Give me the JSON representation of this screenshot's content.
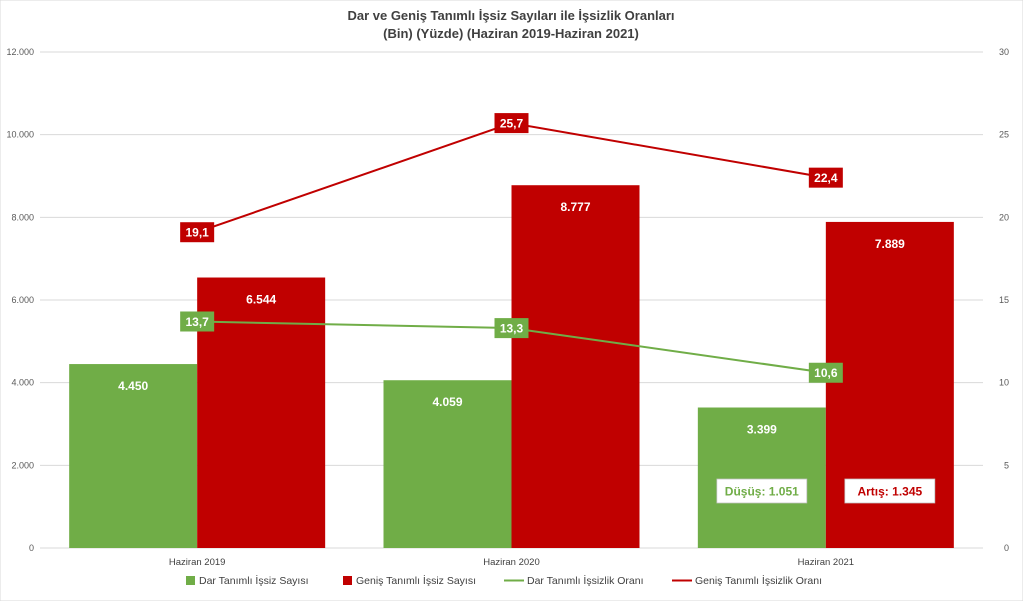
{
  "chart_data": {
    "type": "bar",
    "title_lines": [
      "Dar ve Geniş Tanımlı İşsiz Sayıları ile İşsizlik Oranları",
      "(Bin) (Yüzde) (Haziran 2019-Haziran 2021)"
    ],
    "categories": [
      "Haziran 2019",
      "Haziran 2020",
      "Haziran 2021"
    ],
    "y_left": {
      "ylim": [
        0,
        12000
      ],
      "ticks": [
        0,
        2000,
        4000,
        6000,
        8000,
        10000,
        12000
      ],
      "tick_labels": [
        "0",
        "2.000",
        "4.000",
        "6.000",
        "8.000",
        "10.000",
        "12.000"
      ]
    },
    "y_right": {
      "ylim": [
        0,
        30
      ],
      "ticks": [
        0,
        5,
        10,
        15,
        20,
        25,
        30
      ],
      "tick_labels": [
        "0",
        "5",
        "10",
        "15",
        "20",
        "25",
        "30"
      ]
    },
    "grid": true,
    "legend_position": "bottom",
    "series": [
      {
        "name": "Dar Tanımlı İşsiz Sayısı",
        "kind": "bar",
        "axis": "left",
        "color": "#70AD47",
        "values": [
          4450,
          4059,
          3399
        ],
        "labels": [
          "4.450",
          "4.059",
          "3.399"
        ]
      },
      {
        "name": "Geniş Tanımlı İşsiz Sayısı",
        "kind": "bar",
        "axis": "left",
        "color": "#C00000",
        "values": [
          6544,
          8777,
          7889
        ],
        "labels": [
          "6.544",
          "8.777",
          "7.889"
        ]
      },
      {
        "name": "Dar Tanımlı İşsizlik Oranı",
        "kind": "line",
        "axis": "right",
        "color": "#70AD47",
        "values": [
          13.7,
          13.3,
          10.6
        ],
        "labels": [
          "13,7",
          "13,3",
          "10,6"
        ]
      },
      {
        "name": "Geniş Tanımlı İşsizlik Oranı",
        "kind": "line",
        "axis": "right",
        "color": "#C00000",
        "values": [
          19.1,
          25.7,
          22.4
        ],
        "labels": [
          "19,1",
          "25,7",
          "22,4"
        ]
      }
    ],
    "annotations": [
      {
        "text": "Düşüş: 1.051",
        "color": "#70AD47",
        "category": "Haziran 2021",
        "series": "Dar Tanımlı İşsiz Sayısı"
      },
      {
        "text": "Artış: 1.345",
        "color": "#C00000",
        "category": "Haziran 2021",
        "series": "Geniş Tanımlı İşsiz Sayısı"
      }
    ]
  }
}
